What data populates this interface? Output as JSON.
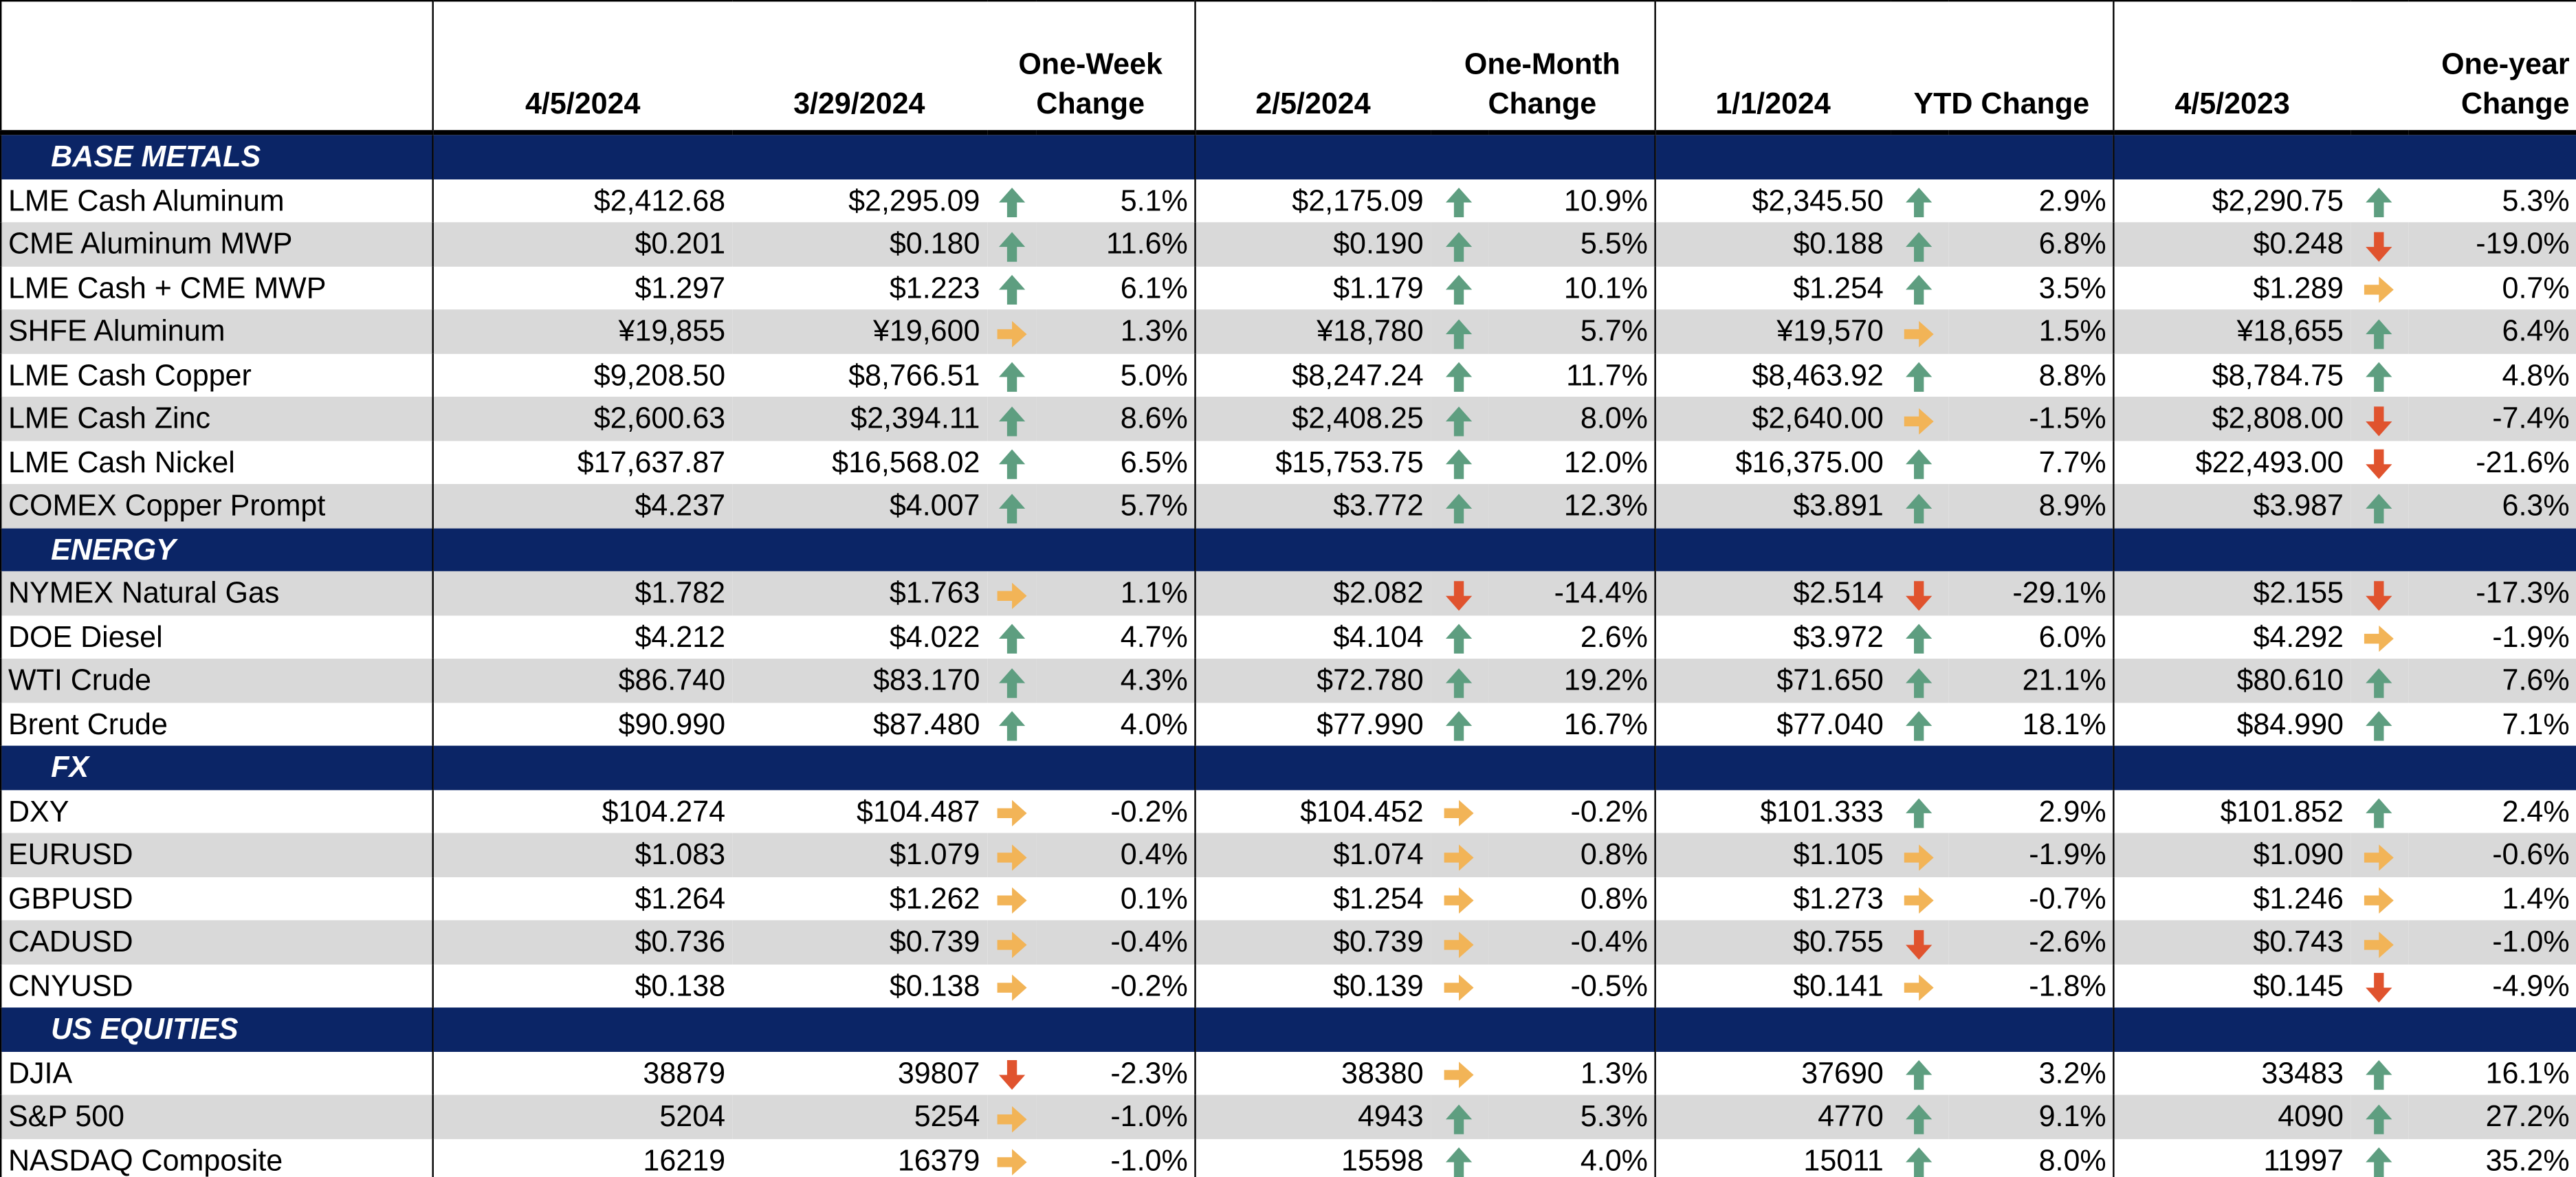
{
  "columns": [
    "4/5/2024",
    "3/29/2024",
    "One-Week Change",
    "2/5/2024",
    "One-Month Change",
    "1/1/2024",
    "YTD Change",
    "4/5/2023",
    "One-year Change"
  ],
  "sections": [
    {
      "title": "BASE METALS",
      "rows": [
        {
          "label": "LME Cash Aluminum",
          "cells": [
            "$2,412.68",
            "$2,295.09",
            "5.1%",
            "$2,175.09",
            "10.9%",
            "$2,345.50",
            "2.9%",
            "$2,290.75",
            "5.3%"
          ],
          "arrows": [
            "up",
            "up",
            "up",
            "up"
          ]
        },
        {
          "label": "CME Aluminum MWP",
          "cells": [
            "$0.201",
            "$0.180",
            "11.6%",
            "$0.190",
            "5.5%",
            "$0.188",
            "6.8%",
            "$0.248",
            "-19.0%"
          ],
          "arrows": [
            "up",
            "up",
            "up",
            "down"
          ]
        },
        {
          "label": "LME Cash + CME MWP",
          "cells": [
            "$1.297",
            "$1.223",
            "6.1%",
            "$1.179",
            "10.1%",
            "$1.254",
            "3.5%",
            "$1.289",
            "0.7%"
          ],
          "arrows": [
            "up",
            "up",
            "up",
            "right"
          ]
        },
        {
          "label": "SHFE Aluminum",
          "cells": [
            "¥19,855",
            "¥19,600",
            "1.3%",
            "¥18,780",
            "5.7%",
            "¥19,570",
            "1.5%",
            "¥18,655",
            "6.4%"
          ],
          "arrows": [
            "right",
            "up",
            "right",
            "up"
          ]
        },
        {
          "label": "LME Cash Copper",
          "cells": [
            "$9,208.50",
            "$8,766.51",
            "5.0%",
            "$8,247.24",
            "11.7%",
            "$8,463.92",
            "8.8%",
            "$8,784.75",
            "4.8%"
          ],
          "arrows": [
            "up",
            "up",
            "up",
            "up"
          ]
        },
        {
          "label": "LME Cash Zinc",
          "cells": [
            "$2,600.63",
            "$2,394.11",
            "8.6%",
            "$2,408.25",
            "8.0%",
            "$2,640.00",
            "-1.5%",
            "$2,808.00",
            "-7.4%"
          ],
          "arrows": [
            "up",
            "up",
            "right",
            "down"
          ]
        },
        {
          "label": "LME Cash Nickel",
          "cells": [
            "$17,637.87",
            "$16,568.02",
            "6.5%",
            "$15,753.75",
            "12.0%",
            "$16,375.00",
            "7.7%",
            "$22,493.00",
            "-21.6%"
          ],
          "arrows": [
            "up",
            "up",
            "up",
            "down"
          ]
        },
        {
          "label": "COMEX Copper Prompt",
          "cells": [
            "$4.237",
            "$4.007",
            "5.7%",
            "$3.772",
            "12.3%",
            "$3.891",
            "8.9%",
            "$3.987",
            "6.3%"
          ],
          "arrows": [
            "up",
            "up",
            "up",
            "up"
          ]
        }
      ]
    },
    {
      "title": "ENERGY",
      "rows": [
        {
          "label": "NYMEX Natural Gas",
          "cells": [
            "$1.782",
            "$1.763",
            "1.1%",
            "$2.082",
            "-14.4%",
            "$2.514",
            "-29.1%",
            "$2.155",
            "-17.3%"
          ],
          "arrows": [
            "right",
            "down",
            "down",
            "down"
          ]
        },
        {
          "label": "DOE Diesel",
          "cells": [
            "$4.212",
            "$4.022",
            "4.7%",
            "$4.104",
            "2.6%",
            "$3.972",
            "6.0%",
            "$4.292",
            "-1.9%"
          ],
          "arrows": [
            "up",
            "up",
            "up",
            "right"
          ]
        },
        {
          "label": "WTI Crude",
          "cells": [
            "$86.740",
            "$83.170",
            "4.3%",
            "$72.780",
            "19.2%",
            "$71.650",
            "21.1%",
            "$80.610",
            "7.6%"
          ],
          "arrows": [
            "up",
            "up",
            "up",
            "up"
          ]
        },
        {
          "label": "Brent Crude",
          "cells": [
            "$90.990",
            "$87.480",
            "4.0%",
            "$77.990",
            "16.7%",
            "$77.040",
            "18.1%",
            "$84.990",
            "7.1%"
          ],
          "arrows": [
            "up",
            "up",
            "up",
            "up"
          ]
        }
      ]
    },
    {
      "title": "FX",
      "rows": [
        {
          "label": "DXY",
          "cells": [
            "$104.274",
            "$104.487",
            "-0.2%",
            "$104.452",
            "-0.2%",
            "$101.333",
            "2.9%",
            "$101.852",
            "2.4%"
          ],
          "arrows": [
            "right",
            "right",
            "up",
            "up"
          ]
        },
        {
          "label": "EURUSD",
          "cells": [
            "$1.083",
            "$1.079",
            "0.4%",
            "$1.074",
            "0.8%",
            "$1.105",
            "-1.9%",
            "$1.090",
            "-0.6%"
          ],
          "arrows": [
            "right",
            "right",
            "right",
            "right"
          ]
        },
        {
          "label": "GBPUSD",
          "cells": [
            "$1.264",
            "$1.262",
            "0.1%",
            "$1.254",
            "0.8%",
            "$1.273",
            "-0.7%",
            "$1.246",
            "1.4%"
          ],
          "arrows": [
            "right",
            "right",
            "right",
            "right"
          ]
        },
        {
          "label": "CADUSD",
          "cells": [
            "$0.736",
            "$0.739",
            "-0.4%",
            "$0.739",
            "-0.4%",
            "$0.755",
            "-2.6%",
            "$0.743",
            "-1.0%"
          ],
          "arrows": [
            "right",
            "right",
            "down",
            "right"
          ]
        },
        {
          "label": "CNYUSD",
          "cells": [
            "$0.138",
            "$0.138",
            "-0.2%",
            "$0.139",
            "-0.5%",
            "$0.141",
            "-1.8%",
            "$0.145",
            "-4.9%"
          ],
          "arrows": [
            "right",
            "right",
            "right",
            "down"
          ]
        }
      ]
    },
    {
      "title": "US EQUITIES",
      "rows": [
        {
          "label": "DJIA",
          "cells": [
            "38879",
            "39807",
            "-2.3%",
            "38380",
            "1.3%",
            "37690",
            "3.2%",
            "33483",
            "16.1%"
          ],
          "arrows": [
            "down",
            "right",
            "up",
            "up"
          ]
        },
        {
          "label": "S&P 500",
          "cells": [
            "5204",
            "5254",
            "-1.0%",
            "4943",
            "5.3%",
            "4770",
            "9.1%",
            "4090",
            "27.2%"
          ],
          "arrows": [
            "right",
            "up",
            "up",
            "up"
          ]
        },
        {
          "label": "NASDAQ Composite",
          "cells": [
            "16219",
            "16379",
            "-1.0%",
            "15598",
            "4.0%",
            "15011",
            "8.0%",
            "11997",
            "35.2%"
          ],
          "arrows": [
            "right",
            "up",
            "up",
            "up"
          ]
        }
      ]
    }
  ]
}
